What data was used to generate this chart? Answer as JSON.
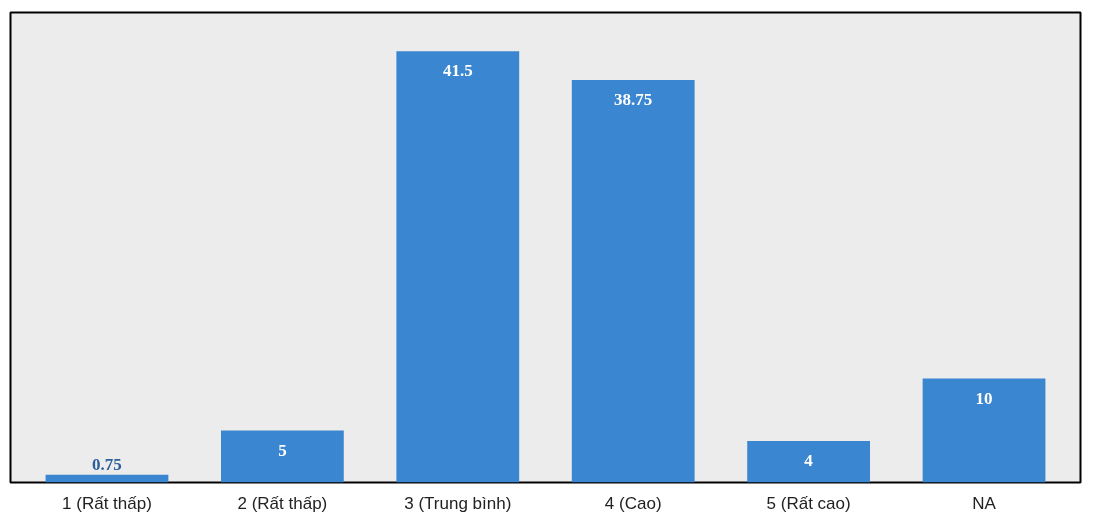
{
  "chart_data": {
    "type": "bar",
    "categories": [
      "1 (Rất thấp)",
      "2 (Rất thấp)",
      "3 (Trung bình)",
      "4 (Cao)",
      "5 (Rất cao)",
      "NA"
    ],
    "values": [
      0.75,
      5,
      41.5,
      38.75,
      4,
      10
    ],
    "color": "#3a86d0",
    "data_labels": true,
    "grid": false
  }
}
